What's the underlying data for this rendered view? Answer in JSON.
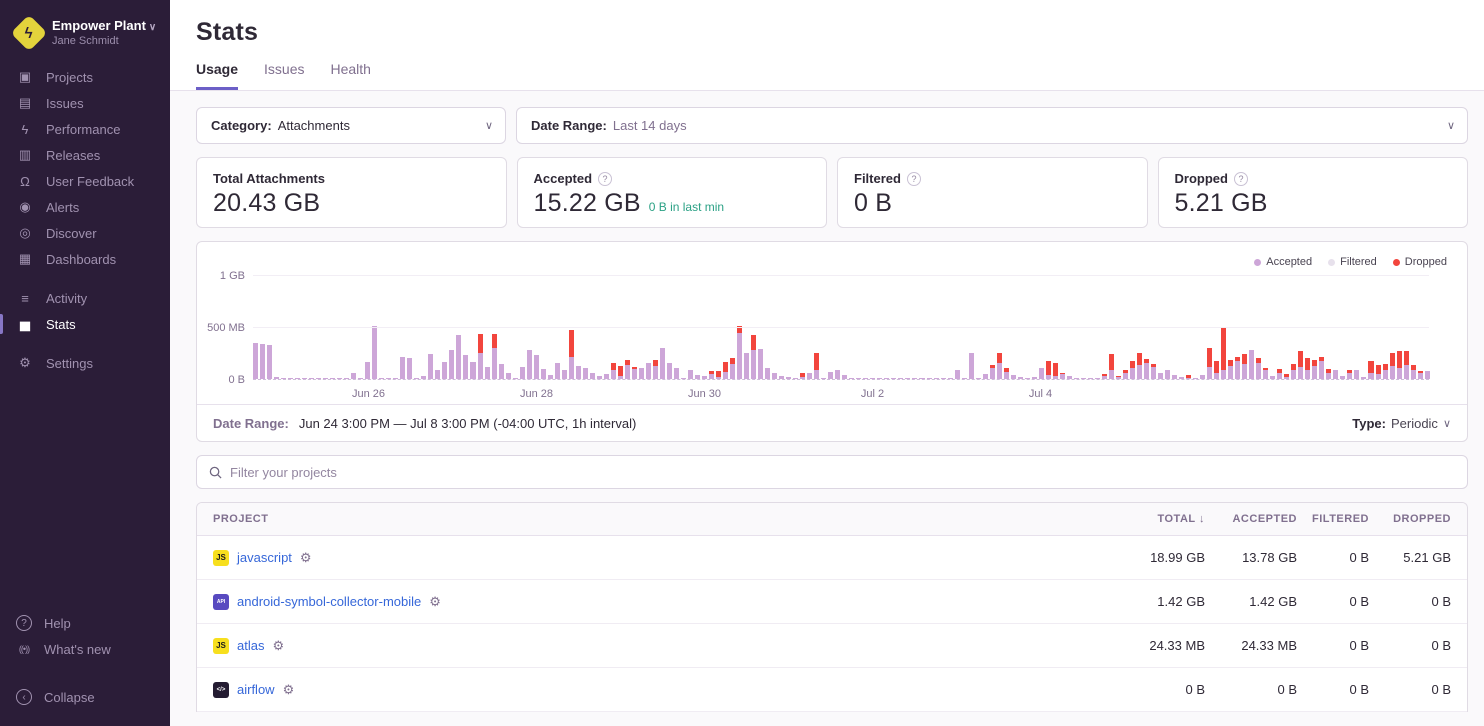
{
  "colors": {
    "accent": "#6c5fc7",
    "sidebar_bg": "#2b1d38",
    "link": "#3667d9",
    "teal": "#2ba185",
    "accepted_bar": "#cda6d8",
    "filtered_dot": "#e7e1ec",
    "dropped_bar": "#f2453d",
    "js_badge_bg": "#f7df1e",
    "android_badge_bg": "#584ac0",
    "native_badge_bg": "#241c32"
  },
  "org": {
    "name": "Empower Plant",
    "user": "Jane Schmidt",
    "chevron": "∨",
    "logo_glyph": "ϟ"
  },
  "sidebar": {
    "items": [
      {
        "label": "Projects",
        "icon_name": "projects-icon",
        "glyph": "▣",
        "active": false,
        "gap_before": false
      },
      {
        "label": "Issues",
        "icon_name": "issues-icon",
        "glyph": "▤",
        "active": false,
        "gap_before": false
      },
      {
        "label": "Performance",
        "icon_name": "performance-icon",
        "glyph": "ϟ",
        "active": false,
        "gap_before": false
      },
      {
        "label": "Releases",
        "icon_name": "releases-icon",
        "glyph": "▥",
        "active": false,
        "gap_before": false
      },
      {
        "label": "User Feedback",
        "icon_name": "user-feedback-icon",
        "glyph": "Ω",
        "active": false,
        "gap_before": false
      },
      {
        "label": "Alerts",
        "icon_name": "alerts-icon",
        "glyph": "◉",
        "active": false,
        "gap_before": false
      },
      {
        "label": "Discover",
        "icon_name": "discover-icon",
        "glyph": "◎",
        "active": false,
        "gap_before": false
      },
      {
        "label": "Dashboards",
        "icon_name": "dashboards-icon",
        "glyph": "▦",
        "active": false,
        "gap_before": false
      },
      {
        "label": "Activity",
        "icon_name": "activity-icon",
        "glyph": "≡",
        "active": false,
        "gap_before": true
      },
      {
        "label": "Stats",
        "icon_name": "stats-icon",
        "glyph": "▅",
        "active": true,
        "gap_before": false
      },
      {
        "label": "Settings",
        "icon_name": "settings-icon",
        "glyph": "⚙",
        "active": false,
        "gap_before": true
      }
    ],
    "footer": {
      "help_label": "Help",
      "whats_new_label": "What's new",
      "collapse_label": "Collapse"
    }
  },
  "header": {
    "title": "Stats",
    "tabs": [
      {
        "label": "Usage",
        "active": true
      },
      {
        "label": "Issues",
        "active": false
      },
      {
        "label": "Health",
        "active": false
      }
    ]
  },
  "filters": {
    "category_label": "Category:",
    "category_value": "Attachments",
    "date_range_label": "Date Range:",
    "date_range_value": "Last 14 days",
    "chevron": "∨"
  },
  "cards": [
    {
      "title": "Total Attachments",
      "value": "20.43 GB",
      "has_info": false,
      "extra": ""
    },
    {
      "title": "Accepted",
      "value": "15.22 GB",
      "has_info": true,
      "extra": "0 B in last min"
    },
    {
      "title": "Filtered",
      "value": "0 B",
      "has_info": true,
      "extra": ""
    },
    {
      "title": "Dropped",
      "value": "5.21 GB",
      "has_info": true,
      "extra": ""
    }
  ],
  "chart_data": {
    "type": "bar",
    "stacked": true,
    "title": "",
    "xlabel": "",
    "ylabel": "",
    "unit": "MB",
    "x_range": "Jun 24 3:00 PM – Jul 8 3:00 PM, 1h interval (bars aggregated ~2h)",
    "ylim_mb": [
      0,
      1000
    ],
    "y_ticks": [
      {
        "label": "0 B",
        "mb": 0
      },
      {
        "label": "500 MB",
        "mb": 500
      },
      {
        "label": "1 GB",
        "mb": 1000
      }
    ],
    "x_ticks": [
      {
        "label": "Jun 26",
        "index": 16
      },
      {
        "label": "Jun 28",
        "index": 40
      },
      {
        "label": "Jun 30",
        "index": 64
      },
      {
        "label": "Jul 2",
        "index": 88
      },
      {
        "label": "Jul 4",
        "index": 112
      }
    ],
    "legend": [
      {
        "name": "Accepted",
        "color": "#cda6d8"
      },
      {
        "name": "Filtered",
        "color": "#e7e1ec"
      },
      {
        "name": "Dropped",
        "color": "#f2453d"
      }
    ],
    "series_order": [
      "accepted_mb",
      "dropped_mb"
    ],
    "bars_accepted_dropped_mb": [
      [
        345,
        0
      ],
      [
        335,
        0
      ],
      [
        328,
        0
      ],
      [
        18,
        0
      ],
      [
        5,
        0
      ],
      [
        7,
        0
      ],
      [
        4,
        0
      ],
      [
        6,
        0
      ],
      [
        5,
        0
      ],
      [
        8,
        0
      ],
      [
        4,
        0
      ],
      [
        6,
        0
      ],
      [
        5,
        0
      ],
      [
        7,
        0
      ],
      [
        55,
        0
      ],
      [
        8,
        0
      ],
      [
        160,
        0
      ],
      [
        512,
        0
      ],
      [
        12,
        0
      ],
      [
        6,
        0
      ],
      [
        9,
        0
      ],
      [
        212,
        0
      ],
      [
        204,
        0
      ],
      [
        8,
        0
      ],
      [
        32,
        0
      ],
      [
        242,
        0
      ],
      [
        88,
        0
      ],
      [
        168,
        0
      ],
      [
        281,
        0
      ],
      [
        421,
        0
      ],
      [
        232,
        0
      ],
      [
        168,
        0
      ],
      [
        252,
        178
      ],
      [
        118,
        0
      ],
      [
        298,
        132
      ],
      [
        142,
        0
      ],
      [
        58,
        0
      ],
      [
        9,
        0
      ],
      [
        118,
        0
      ],
      [
        278,
        0
      ],
      [
        228,
        0
      ],
      [
        92,
        0
      ],
      [
        41,
        0
      ],
      [
        152,
        0
      ],
      [
        88,
        0
      ],
      [
        212,
        262
      ],
      [
        128,
        0
      ],
      [
        108,
        0
      ],
      [
        62,
        0
      ],
      [
        31,
        0
      ],
      [
        46,
        0
      ],
      [
        88,
        62
      ],
      [
        32,
        98
      ],
      [
        138,
        42
      ],
      [
        92,
        28
      ],
      [
        108,
        0
      ],
      [
        152,
        0
      ],
      [
        128,
        58
      ],
      [
        298,
        0
      ],
      [
        158,
        0
      ],
      [
        108,
        0
      ],
      [
        9,
        0
      ],
      [
        88,
        0
      ],
      [
        42,
        0
      ],
      [
        26,
        0
      ],
      [
        52,
        28
      ],
      [
        22,
        58
      ],
      [
        72,
        88
      ],
      [
        148,
        52
      ],
      [
        438,
        72
      ],
      [
        248,
        0
      ],
      [
        278,
        142
      ],
      [
        288,
        0
      ],
      [
        108,
        0
      ],
      [
        58,
        0
      ],
      [
        32,
        0
      ],
      [
        18,
        0
      ],
      [
        8,
        0
      ],
      [
        16,
        44
      ],
      [
        58,
        0
      ],
      [
        88,
        158
      ],
      [
        9,
        0
      ],
      [
        68,
        0
      ],
      [
        88,
        0
      ],
      [
        38,
        0
      ],
      [
        6,
        0
      ],
      [
        5,
        0
      ],
      [
        7,
        0
      ],
      [
        5,
        0
      ],
      [
        6,
        0
      ],
      [
        4,
        0
      ],
      [
        6,
        0
      ],
      [
        5,
        0
      ],
      [
        7,
        0
      ],
      [
        5,
        0
      ],
      [
        6,
        0
      ],
      [
        4,
        0
      ],
      [
        7,
        0
      ],
      [
        5,
        0
      ],
      [
        6,
        0
      ],
      [
        88,
        0
      ],
      [
        9,
        0
      ],
      [
        248,
        0
      ],
      [
        7,
        0
      ],
      [
        46,
        0
      ],
      [
        108,
        28
      ],
      [
        158,
        88
      ],
      [
        68,
        42
      ],
      [
        36,
        0
      ],
      [
        16,
        0
      ],
      [
        8,
        0
      ],
      [
        22,
        0
      ],
      [
        108,
        0
      ],
      [
        36,
        138
      ],
      [
        28,
        128
      ],
      [
        46,
        16
      ],
      [
        26,
        0
      ],
      [
        11,
        0
      ],
      [
        6,
        0
      ],
      [
        9,
        0
      ],
      [
        13,
        0
      ],
      [
        28,
        16
      ],
      [
        88,
        148
      ],
      [
        22,
        11
      ],
      [
        58,
        32
      ],
      [
        108,
        68
      ],
      [
        138,
        108
      ],
      [
        158,
        32
      ],
      [
        118,
        22
      ],
      [
        58,
        0
      ],
      [
        88,
        0
      ],
      [
        42,
        0
      ],
      [
        22,
        0
      ],
      [
        11,
        26
      ],
      [
        8,
        0
      ],
      [
        42,
        0
      ],
      [
        118,
        178
      ],
      [
        58,
        118
      ],
      [
        88,
        398
      ],
      [
        128,
        58
      ],
      [
        178,
        32
      ],
      [
        148,
        88
      ],
      [
        278,
        0
      ],
      [
        158,
        42
      ],
      [
        88,
        22
      ],
      [
        32,
        0
      ],
      [
        58,
        42
      ],
      [
        22,
        28
      ],
      [
        88,
        58
      ],
      [
        118,
        148
      ],
      [
        88,
        118
      ],
      [
        128,
        58
      ],
      [
        178,
        32
      ],
      [
        58,
        42
      ],
      [
        88,
        0
      ],
      [
        32,
        0
      ],
      [
        58,
        28
      ],
      [
        88,
        0
      ],
      [
        22,
        0
      ],
      [
        58,
        118
      ],
      [
        48,
        88
      ],
      [
        88,
        58
      ],
      [
        128,
        118
      ],
      [
        108,
        158
      ],
      [
        138,
        128
      ],
      [
        88,
        48
      ],
      [
        58,
        22
      ],
      [
        78,
        0
      ]
    ]
  },
  "chart_footer": {
    "label": "Date Range:",
    "value": "Jun 24 3:00 PM — Jul 8 3:00 PM (-04:00 UTC, 1h interval)",
    "type_label": "Type:",
    "type_value": "Periodic",
    "chevron": "∨"
  },
  "project_filter": {
    "placeholder": "Filter your projects"
  },
  "table": {
    "columns": [
      {
        "label": "PROJECT",
        "sorted": false
      },
      {
        "label": "TOTAL",
        "sorted": true
      },
      {
        "label": "ACCEPTED",
        "sorted": false
      },
      {
        "label": "FILTERED",
        "sorted": false
      },
      {
        "label": "DROPPED",
        "sorted": false
      }
    ],
    "sort_arrow": "↓",
    "rows": [
      {
        "name": "javascript",
        "platform": "javascript",
        "badge_text": "JS",
        "badge_bg": "#f7df1e",
        "badge_color": "#1b1b1b",
        "badge_font": 8,
        "total": "18.99 GB",
        "accepted": "13.78 GB",
        "filtered": "0 B",
        "dropped": "5.21 GB"
      },
      {
        "name": "android-symbol-collector-mobile",
        "platform": "android",
        "badge_text": "API",
        "badge_bg": "#584ac0",
        "badge_color": "#ffffff",
        "badge_font": 5,
        "total": "1.42 GB",
        "accepted": "1.42 GB",
        "filtered": "0 B",
        "dropped": "0 B"
      },
      {
        "name": "atlas",
        "platform": "javascript",
        "badge_text": "JS",
        "badge_bg": "#f7df1e",
        "badge_color": "#1b1b1b",
        "badge_font": 8,
        "total": "24.33 MB",
        "accepted": "24.33 MB",
        "filtered": "0 B",
        "dropped": "0 B"
      },
      {
        "name": "airflow",
        "platform": "native",
        "badge_text": "</>",
        "badge_bg": "#241c32",
        "badge_color": "#ffffff",
        "badge_font": 6,
        "total": "0 B",
        "accepted": "0 B",
        "filtered": "0 B",
        "dropped": "0 B"
      }
    ]
  }
}
